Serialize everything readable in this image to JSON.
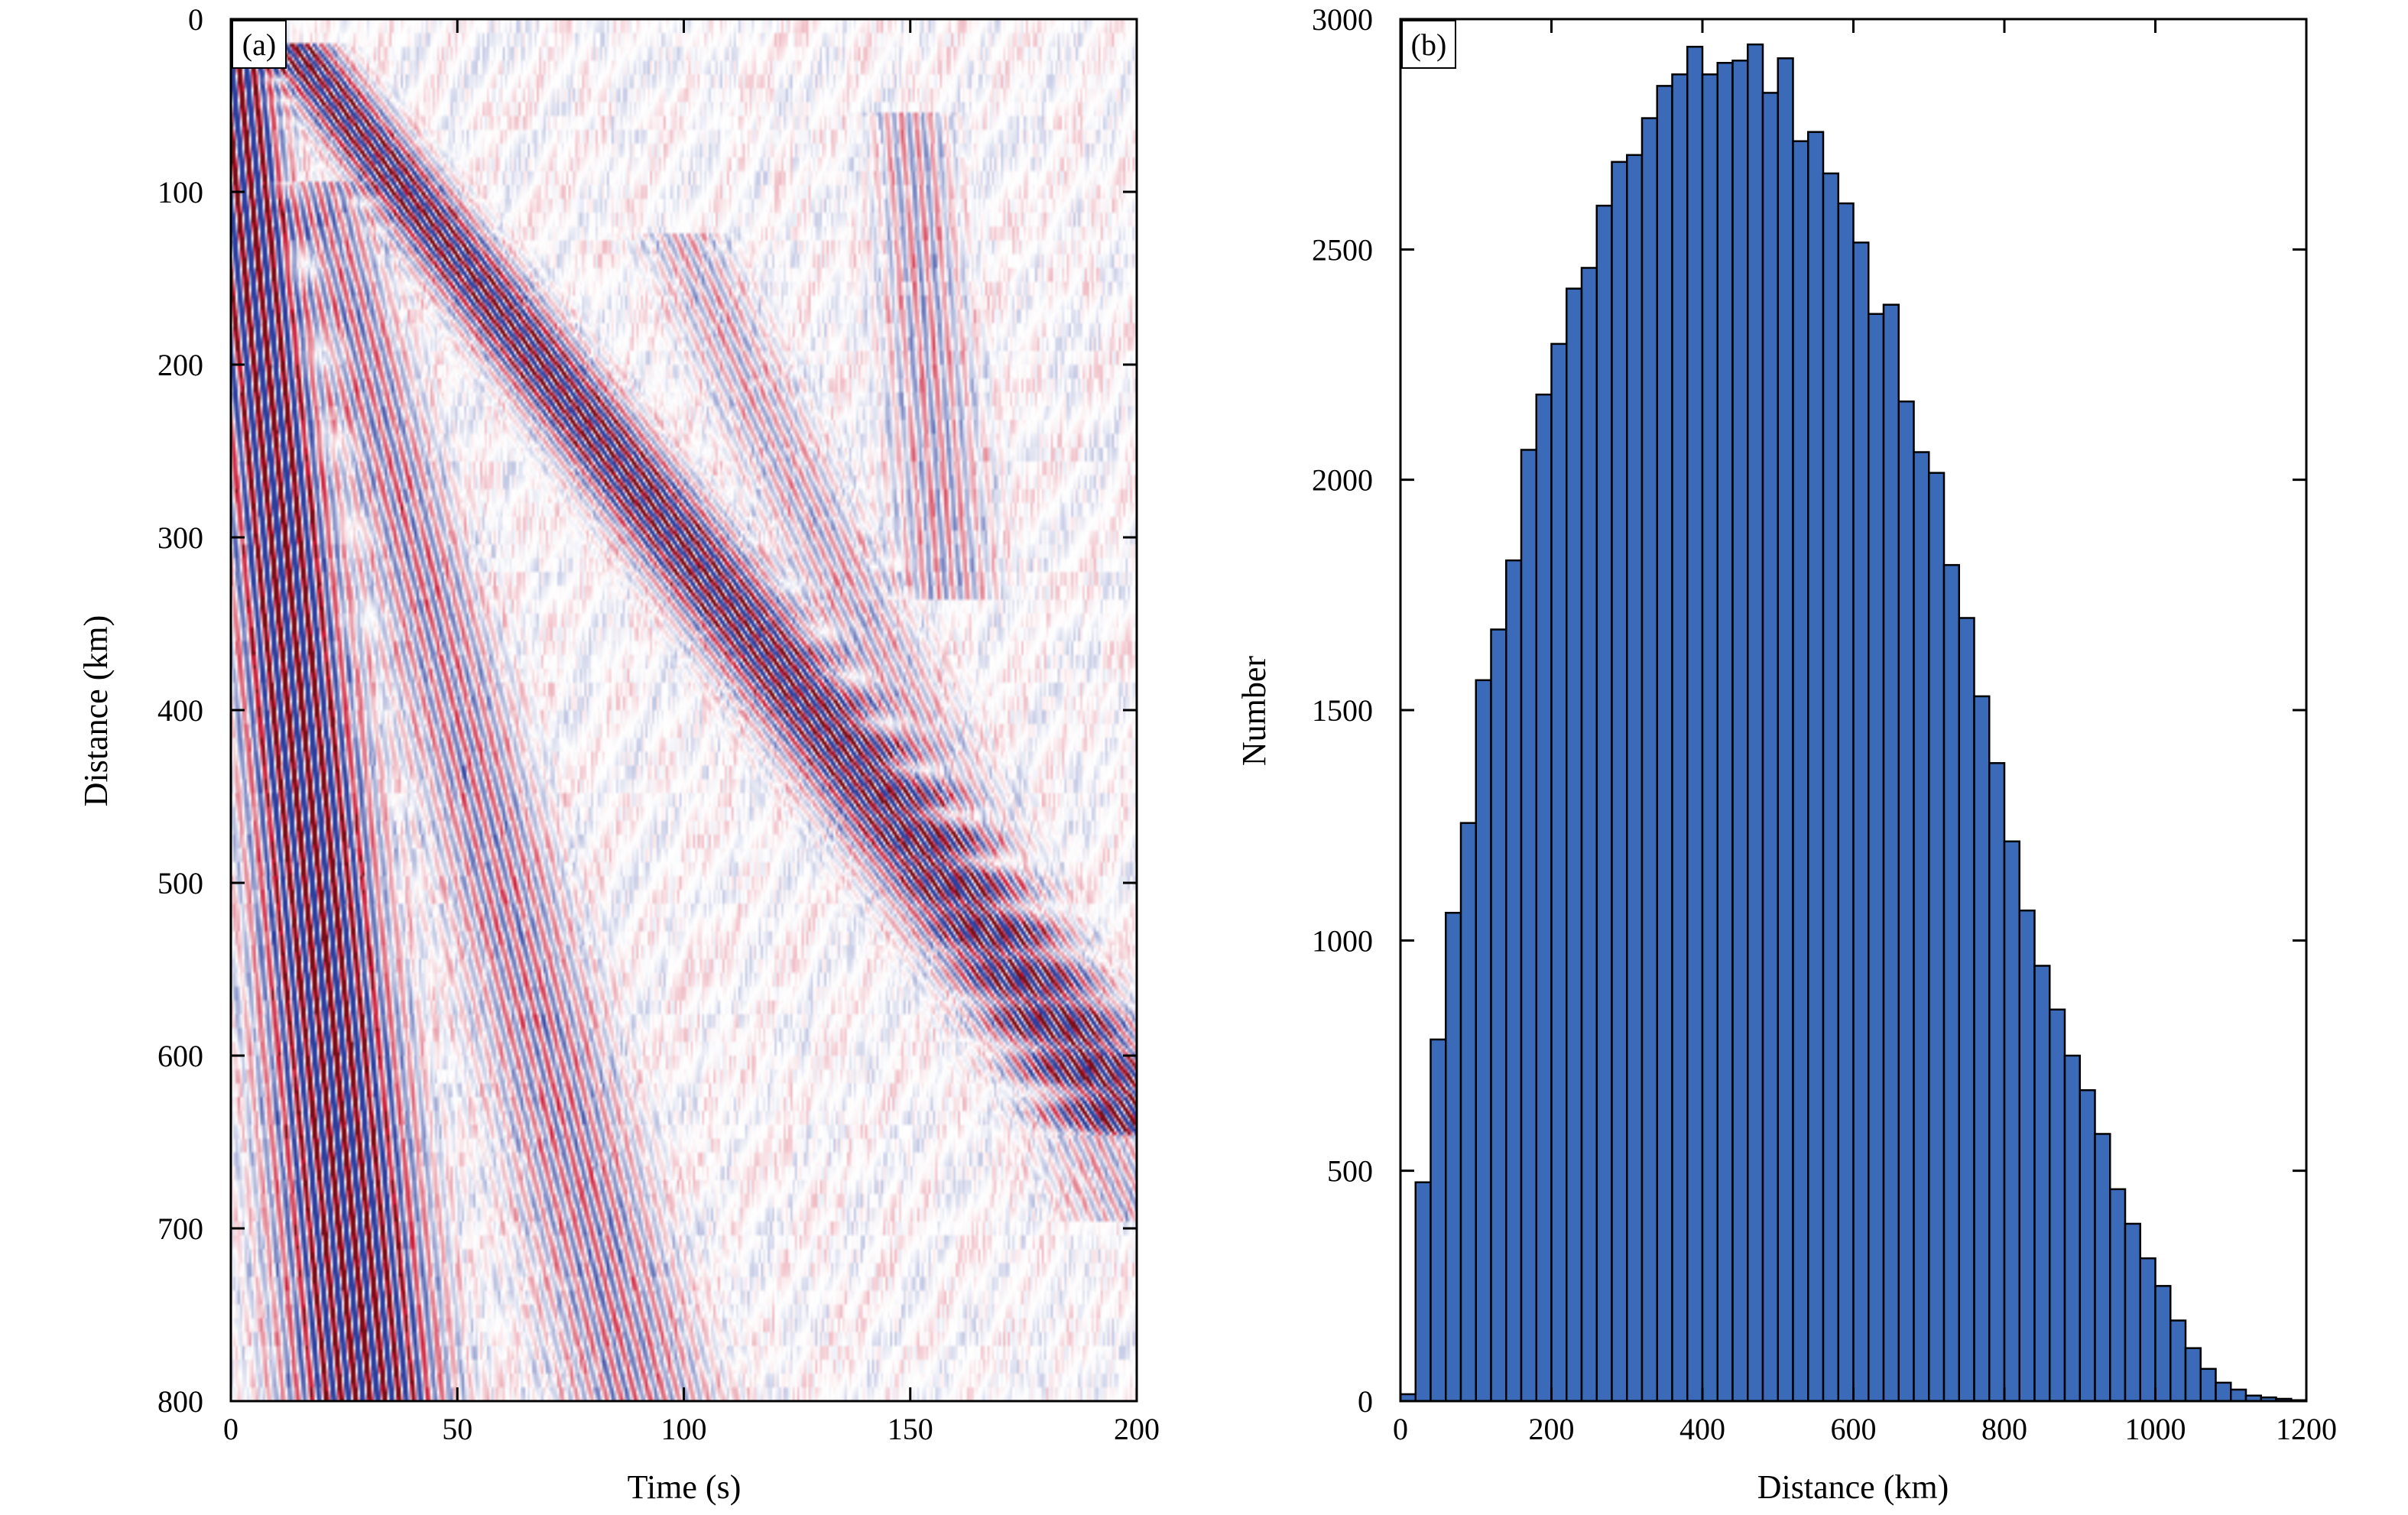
{
  "chart_data": [
    {
      "type": "heatmap",
      "panel_label": "(a)",
      "xlabel": "Time (s)",
      "ylabel": "Distance (km)",
      "xlim": [
        0,
        200
      ],
      "ylim": [
        0,
        800
      ],
      "y_inverted": true,
      "x_ticks": [
        "0",
        "50",
        "100",
        "150",
        "200"
      ],
      "y_ticks": [
        "0",
        "100",
        "200",
        "300",
        "400",
        "500",
        "600",
        "700",
        "800"
      ],
      "colormap": {
        "positive": "#c8102e",
        "negative": "#2b3e9e",
        "zero": "#ffffff",
        "peak": "#7a0c16"
      },
      "wavefronts": [
        {
          "name": "",
          "t_start": 0,
          "d_start": 0,
          "t_end": 30,
          "d_end": 800,
          "strength": 1.0
        },
        {
          "name": "",
          "t_start": 15,
          "d_start": 20,
          "t_end": 200,
          "d_end": 640,
          "strength": 0.95
        },
        {
          "name": "",
          "t_start": 20,
          "d_start": 100,
          "t_end": 90,
          "d_end": 800,
          "strength": 0.45
        },
        {
          "name": "",
          "t_start": 100,
          "d_start": 130,
          "t_end": 200,
          "d_end": 690,
          "strength": 0.3
        },
        {
          "name": "",
          "t_start": 150,
          "d_start": 60,
          "t_end": 158,
          "d_end": 330,
          "strength": 0.35
        }
      ]
    },
    {
      "type": "bar",
      "panel_label": "(b)",
      "xlabel": "Distance (km)",
      "ylabel": "Number",
      "xlim": [
        0,
        1200
      ],
      "ylim": [
        0,
        3000
      ],
      "bin_width": 20,
      "x_ticks": [
        "0",
        "200",
        "400",
        "600",
        "800",
        "1000",
        "1200"
      ],
      "y_ticks": [
        "0",
        "500",
        "1000",
        "1500",
        "2000",
        "2500",
        "3000"
      ],
      "bar_color": "#3b6bb8",
      "bin_starts": [
        0,
        20,
        40,
        60,
        80,
        100,
        120,
        140,
        160,
        180,
        200,
        220,
        240,
        260,
        280,
        300,
        320,
        340,
        360,
        380,
        400,
        420,
        440,
        460,
        480,
        500,
        520,
        540,
        560,
        580,
        600,
        620,
        640,
        660,
        680,
        700,
        720,
        740,
        760,
        780,
        800,
        820,
        840,
        860,
        880,
        900,
        920,
        940,
        960,
        980,
        1000,
        1020,
        1040,
        1060,
        1080,
        1100,
        1120,
        1140,
        1160,
        1180
      ],
      "values": [
        15,
        475,
        785,
        1060,
        1255,
        1565,
        1675,
        1825,
        2065,
        2185,
        2295,
        2415,
        2460,
        2595,
        2690,
        2705,
        2785,
        2855,
        2880,
        2940,
        2880,
        2905,
        2910,
        2945,
        2840,
        2915,
        2735,
        2755,
        2665,
        2600,
        2515,
        2360,
        2380,
        2170,
        2060,
        2015,
        1815,
        1700,
        1530,
        1385,
        1215,
        1065,
        945,
        850,
        750,
        675,
        580,
        460,
        385,
        310,
        250,
        175,
        115,
        70,
        40,
        25,
        12,
        8,
        5,
        2
      ]
    }
  ]
}
